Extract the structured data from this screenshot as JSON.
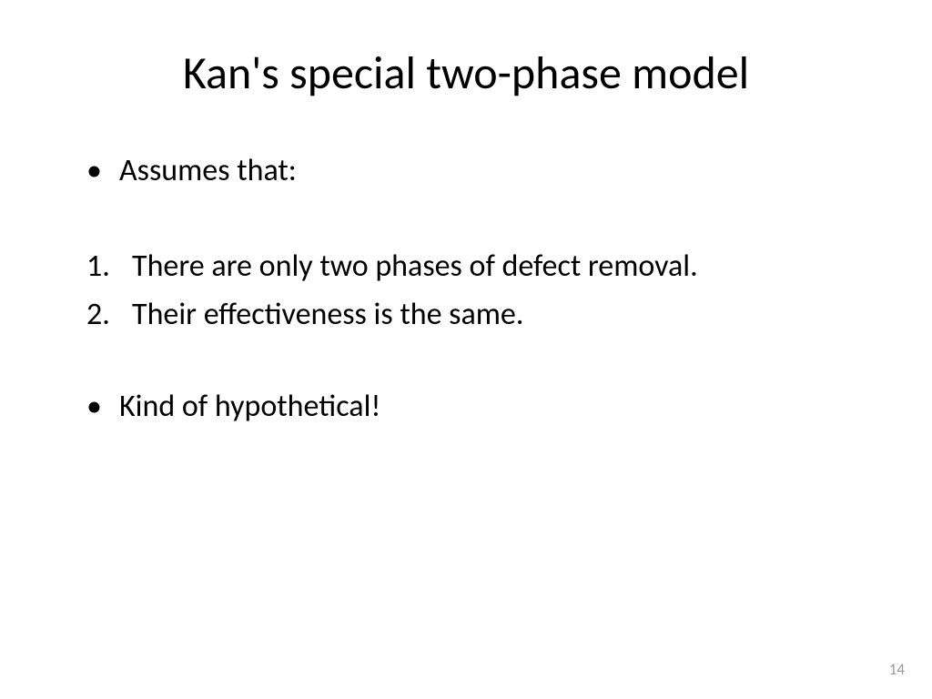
{
  "slide": {
    "title": "Kan's special two-phase model",
    "bullets": {
      "item1": "Assumes that:",
      "item2": "Kind of hypothetical!"
    },
    "numbered": {
      "item1": "There are only two phases of defect removal.",
      "item2": "Their effectiveness is the same."
    },
    "markers": {
      "bullet": "•",
      "num1": "1.",
      "num2": "2."
    },
    "page_number": "14",
    "colors": {
      "background": "#ffffff",
      "text": "#000000",
      "page_number": "#999999"
    },
    "typography": {
      "title_fontsize": 50,
      "body_fontsize": 34,
      "pagenum_fontsize": 17,
      "font_family": "Calibri"
    }
  }
}
